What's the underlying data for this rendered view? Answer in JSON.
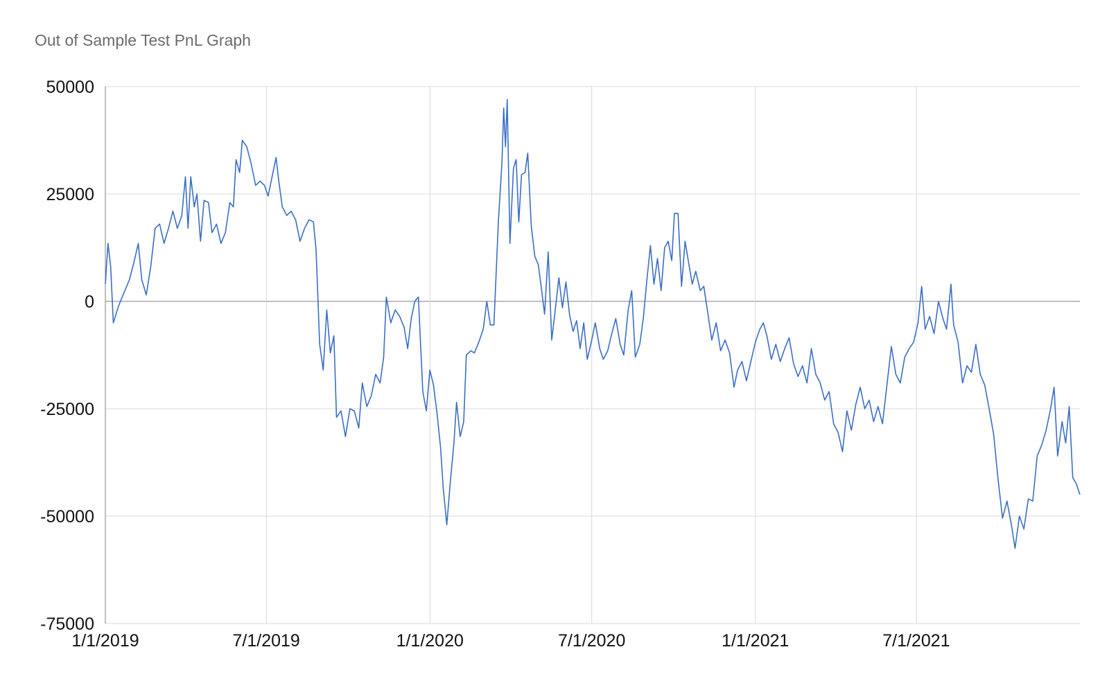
{
  "chart_data": {
    "type": "line",
    "title": "Out of Sample Test PnL Graph",
    "xlabel": "",
    "ylabel": "",
    "x_ticks": [
      "1/1/2019",
      "7/1/2019",
      "1/1/2020",
      "7/1/2020",
      "1/1/2021",
      "7/1/2021"
    ],
    "x_range": [
      "1/1/2019",
      "1/1/2022"
    ],
    "y_ticks": [
      50000,
      25000,
      0,
      -25000,
      -50000,
      -75000
    ],
    "ylim": [
      -75000,
      50000
    ],
    "grid": true,
    "legend": "none",
    "colors": {
      "line": "#3a6ec4",
      "grid": "#d9d9d9",
      "zero_line": "#7f7f7f"
    },
    "series": [
      {
        "values": [
          [
            "1/1/2019",
            4000
          ],
          [
            "1/4/2019",
            13500
          ],
          [
            "1/7/2019",
            8000
          ],
          [
            "1/10/2019",
            -5000
          ],
          [
            "1/16/2019",
            -1000
          ],
          [
            "1/22/2019",
            2000
          ],
          [
            "1/28/2019",
            5000
          ],
          [
            "2/2/2019",
            9000
          ],
          [
            "2/7/2019",
            13500
          ],
          [
            "2/11/2019",
            5000
          ],
          [
            "2/16/2019",
            1500
          ],
          [
            "2/21/2019",
            8000
          ],
          [
            "2/26/2019",
            17000
          ],
          [
            "3/3/2019",
            18000
          ],
          [
            "3/8/2019",
            13500
          ],
          [
            "3/13/2019",
            17000
          ],
          [
            "3/18/2019",
            21000
          ],
          [
            "3/23/2019",
            17000
          ],
          [
            "3/28/2019",
            20000
          ],
          [
            "4/1/2019",
            29000
          ],
          [
            "4/4/2019",
            17000
          ],
          [
            "4/7/2019",
            29000
          ],
          [
            "4/11/2019",
            22000
          ],
          [
            "4/14/2019",
            25000
          ],
          [
            "4/18/2019",
            14000
          ],
          [
            "4/22/2019",
            23500
          ],
          [
            "4/27/2019",
            23000
          ],
          [
            "5/1/2019",
            16000
          ],
          [
            "5/6/2019",
            18000
          ],
          [
            "5/11/2019",
            13500
          ],
          [
            "5/16/2019",
            16000
          ],
          [
            "5/21/2019",
            23000
          ],
          [
            "5/25/2019",
            22000
          ],
          [
            "5/28/2019",
            33000
          ],
          [
            "6/1/2019",
            30000
          ],
          [
            "6/4/2019",
            37500
          ],
          [
            "6/9/2019",
            36000
          ],
          [
            "6/14/2019",
            32000
          ],
          [
            "6/19/2019",
            27000
          ],
          [
            "6/24/2019",
            28000
          ],
          [
            "6/29/2019",
            27000
          ],
          [
            "7/3/2019",
            24500
          ],
          [
            "7/7/2019",
            28500
          ],
          [
            "7/12/2019",
            33500
          ],
          [
            "7/15/2019",
            28000
          ],
          [
            "7/19/2019",
            22000
          ],
          [
            "7/24/2019",
            20000
          ],
          [
            "7/29/2019",
            21000
          ],
          [
            "8/3/2019",
            19000
          ],
          [
            "8/8/2019",
            14000
          ],
          [
            "8/13/2019",
            17000
          ],
          [
            "8/18/2019",
            19000
          ],
          [
            "8/23/2019",
            18500
          ],
          [
            "8/26/2019",
            12000
          ],
          [
            "8/30/2019",
            -10000
          ],
          [
            "9/3/2019",
            -16000
          ],
          [
            "9/7/2019",
            -2000
          ],
          [
            "9/11/2019",
            -12000
          ],
          [
            "9/15/2019",
            -8000
          ],
          [
            "9/18/2019",
            -27000
          ],
          [
            "9/23/2019",
            -25500
          ],
          [
            "9/28/2019",
            -31500
          ],
          [
            "10/3/2019",
            -25000
          ],
          [
            "10/8/2019",
            -25500
          ],
          [
            "10/13/2019",
            -29500
          ],
          [
            "10/17/2019",
            -19000
          ],
          [
            "10/22/2019",
            -24500
          ],
          [
            "10/27/2019",
            -22000
          ],
          [
            "11/1/2019",
            -17000
          ],
          [
            "11/6/2019",
            -19000
          ],
          [
            "11/10/2019",
            -13000
          ],
          [
            "11/13/2019",
            1000
          ],
          [
            "11/18/2019",
            -5000
          ],
          [
            "11/23/2019",
            -2000
          ],
          [
            "11/28/2019",
            -3500
          ],
          [
            "12/3/2019",
            -6000
          ],
          [
            "12/7/2019",
            -11000
          ],
          [
            "12/11/2019",
            -4000
          ],
          [
            "12/15/2019",
            0
          ],
          [
            "12/19/2019",
            1000
          ],
          [
            "12/24/2019",
            -21000
          ],
          [
            "12/28/2019",
            -25500
          ],
          [
            "1/1/2020",
            -16000
          ],
          [
            "1/5/2020",
            -19500
          ],
          [
            "1/9/2020",
            -26000
          ],
          [
            "1/13/2020",
            -34000
          ],
          [
            "1/16/2020",
            -43500
          ],
          [
            "1/20/2020",
            -52000
          ],
          [
            "1/24/2020",
            -42000
          ],
          [
            "1/28/2020",
            -33000
          ],
          [
            "1/31/2020",
            -23500
          ],
          [
            "2/4/2020",
            -31500
          ],
          [
            "2/8/2020",
            -28000
          ],
          [
            "2/11/2020",
            -12500
          ],
          [
            "2/16/2020",
            -11500
          ],
          [
            "2/20/2020",
            -12000
          ],
          [
            "2/25/2020",
            -9500
          ],
          [
            "3/1/2020",
            -6500
          ],
          [
            "3/5/2020",
            0
          ],
          [
            "3/9/2020",
            -5500
          ],
          [
            "3/13/2020",
            -5500
          ],
          [
            "3/18/2020",
            18500
          ],
          [
            "3/22/2020",
            32000
          ],
          [
            "3/24/2020",
            45000
          ],
          [
            "3/26/2020",
            36000
          ],
          [
            "3/28/2020",
            47000
          ],
          [
            "3/31/2020",
            13500
          ],
          [
            "4/4/2020",
            31000
          ],
          [
            "4/7/2020",
            33000
          ],
          [
            "4/10/2020",
            18500
          ],
          [
            "4/13/2020",
            29500
          ],
          [
            "4/17/2020",
            30000
          ],
          [
            "4/20/2020",
            34500
          ],
          [
            "4/24/2020",
            17500
          ],
          [
            "4/28/2020",
            10500
          ],
          [
            "5/2/2020",
            8500
          ],
          [
            "5/6/2020",
            2000
          ],
          [
            "5/9/2020",
            -3000
          ],
          [
            "5/13/2020",
            11500
          ],
          [
            "5/17/2020",
            -9000
          ],
          [
            "5/21/2020",
            -2000
          ],
          [
            "5/25/2020",
            5500
          ],
          [
            "5/29/2020",
            -1500
          ],
          [
            "6/2/2020",
            4500
          ],
          [
            "6/6/2020",
            -3000
          ],
          [
            "6/10/2020",
            -7000
          ],
          [
            "6/14/2020",
            -4500
          ],
          [
            "6/18/2020",
            -11000
          ],
          [
            "6/22/2020",
            -5000
          ],
          [
            "6/26/2020",
            -13500
          ],
          [
            "7/1/2020",
            -9000
          ],
          [
            "7/5/2020",
            -5000
          ],
          [
            "7/10/2020",
            -11000
          ],
          [
            "7/14/2020",
            -13500
          ],
          [
            "7/19/2020",
            -11500
          ],
          [
            "7/23/2020",
            -8000
          ],
          [
            "7/28/2020",
            -4000
          ],
          [
            "8/2/2020",
            -10000
          ],
          [
            "8/6/2020",
            -12500
          ],
          [
            "8/11/2020",
            -2000
          ],
          [
            "8/15/2020",
            2500
          ],
          [
            "8/19/2020",
            -13000
          ],
          [
            "8/24/2020",
            -10000
          ],
          [
            "8/28/2020",
            -4000
          ],
          [
            "9/1/2020",
            5000
          ],
          [
            "9/5/2020",
            13000
          ],
          [
            "9/9/2020",
            4000
          ],
          [
            "9/13/2020",
            10000
          ],
          [
            "9/17/2020",
            2500
          ],
          [
            "9/21/2020",
            12500
          ],
          [
            "9/25/2020",
            14000
          ],
          [
            "9/29/2020",
            9500
          ],
          [
            "10/2/2020",
            20500
          ],
          [
            "10/6/2020",
            20500
          ],
          [
            "10/10/2020",
            3500
          ],
          [
            "10/14/2020",
            14000
          ],
          [
            "10/18/2020",
            9000
          ],
          [
            "10/22/2020",
            4000
          ],
          [
            "10/26/2020",
            7000
          ],
          [
            "10/31/2020",
            2500
          ],
          [
            "11/4/2020",
            3500
          ],
          [
            "11/8/2020",
            -2000
          ],
          [
            "11/13/2020",
            -9000
          ],
          [
            "11/18/2020",
            -5000
          ],
          [
            "11/23/2020",
            -11500
          ],
          [
            "11/28/2020",
            -9000
          ],
          [
            "12/3/2020",
            -12000
          ],
          [
            "12/8/2020",
            -20000
          ],
          [
            "12/12/2020",
            -16000
          ],
          [
            "12/17/2020",
            -14000
          ],
          [
            "12/22/2020",
            -18500
          ],
          [
            "12/27/2020",
            -14000
          ],
          [
            "1/1/2021",
            -9500
          ],
          [
            "1/6/2021",
            -6500
          ],
          [
            "1/10/2021",
            -5000
          ],
          [
            "1/14/2021",
            -8000
          ],
          [
            "1/19/2021",
            -13500
          ],
          [
            "1/24/2021",
            -10000
          ],
          [
            "1/29/2021",
            -14000
          ],
          [
            "2/3/2021",
            -11000
          ],
          [
            "2/8/2021",
            -8500
          ],
          [
            "2/13/2021",
            -14500
          ],
          [
            "2/18/2021",
            -17500
          ],
          [
            "2/23/2021",
            -15000
          ],
          [
            "2/28/2021",
            -19000
          ],
          [
            "3/5/2021",
            -11000
          ],
          [
            "3/10/2021",
            -17000
          ],
          [
            "3/15/2021",
            -19000
          ],
          [
            "3/20/2021",
            -23000
          ],
          [
            "3/25/2021",
            -21000
          ],
          [
            "3/30/2021",
            -28500
          ],
          [
            "4/4/2021",
            -30500
          ],
          [
            "4/9/2021",
            -35000
          ],
          [
            "4/14/2021",
            -25500
          ],
          [
            "4/19/2021",
            -30000
          ],
          [
            "4/24/2021",
            -24000
          ],
          [
            "4/29/2021",
            -20000
          ],
          [
            "5/4/2021",
            -25000
          ],
          [
            "5/9/2021",
            -23000
          ],
          [
            "5/14/2021",
            -28000
          ],
          [
            "5/19/2021",
            -24500
          ],
          [
            "5/24/2021",
            -28500
          ],
          [
            "5/29/2021",
            -19500
          ],
          [
            "6/3/2021",
            -10500
          ],
          [
            "6/8/2021",
            -17000
          ],
          [
            "6/13/2021",
            -19000
          ],
          [
            "6/18/2021",
            -13000
          ],
          [
            "6/23/2021",
            -11000
          ],
          [
            "6/28/2021",
            -9500
          ],
          [
            "7/3/2021",
            -5000
          ],
          [
            "7/7/2021",
            3500
          ],
          [
            "7/11/2021",
            -6500
          ],
          [
            "7/16/2021",
            -3500
          ],
          [
            "7/21/2021",
            -7500
          ],
          [
            "7/26/2021",
            0
          ],
          [
            "7/31/2021",
            -4000
          ],
          [
            "8/4/2021",
            -6500
          ],
          [
            "8/9/2021",
            4000
          ],
          [
            "8/12/2021",
            -5500
          ],
          [
            "8/17/2021",
            -9500
          ],
          [
            "8/22/2021",
            -19000
          ],
          [
            "8/27/2021",
            -15000
          ],
          [
            "9/1/2021",
            -16500
          ],
          [
            "9/6/2021",
            -10000
          ],
          [
            "9/11/2021",
            -17000
          ],
          [
            "9/16/2021",
            -19500
          ],
          [
            "9/21/2021",
            -25000
          ],
          [
            "9/26/2021",
            -31000
          ],
          [
            "10/1/2021",
            -41500
          ],
          [
            "10/6/2021",
            -50500
          ],
          [
            "10/11/2021",
            -46500
          ],
          [
            "10/16/2021",
            -52000
          ],
          [
            "10/20/2021",
            -57500
          ],
          [
            "10/25/2021",
            -50000
          ],
          [
            "10/30/2021",
            -53000
          ],
          [
            "11/4/2021",
            -46000
          ],
          [
            "11/9/2021",
            -46500
          ],
          [
            "11/14/2021",
            -36000
          ],
          [
            "11/19/2021",
            -33500
          ],
          [
            "11/24/2021",
            -30000
          ],
          [
            "11/29/2021",
            -25000
          ],
          [
            "12/3/2021",
            -20000
          ],
          [
            "12/7/2021",
            -36000
          ],
          [
            "12/12/2021",
            -28000
          ],
          [
            "12/16/2021",
            -33000
          ],
          [
            "12/20/2021",
            -24500
          ],
          [
            "12/24/2021",
            -41000
          ],
          [
            "12/28/2021",
            -42500
          ],
          [
            "1/1/2022",
            -45000
          ]
        ]
      }
    ]
  }
}
